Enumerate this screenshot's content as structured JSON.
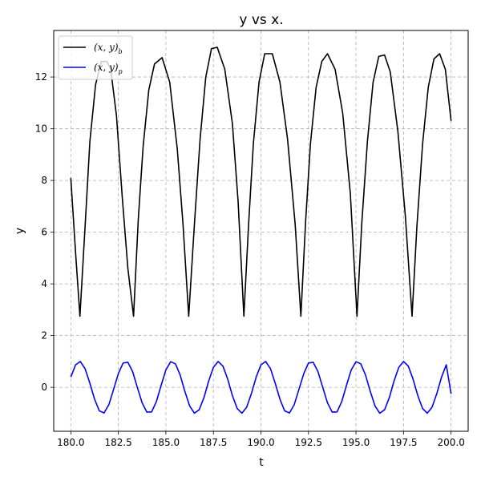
{
  "chart_data": {
    "type": "line",
    "title": "y vs x.",
    "xlabel": "t",
    "ylabel": "y",
    "xlim": [
      179.1,
      200.9
    ],
    "ylim": [
      -1.7,
      13.8
    ],
    "xticks": [
      "180.0",
      "182.5",
      "185.0",
      "187.5",
      "190.0",
      "192.5",
      "195.0",
      "197.5",
      "200.0"
    ],
    "xtick_values": [
      180.0,
      182.5,
      185.0,
      187.5,
      190.0,
      192.5,
      195.0,
      197.5,
      200.0
    ],
    "yticks": [
      "0",
      "2",
      "4",
      "6",
      "8",
      "10",
      "12"
    ],
    "ytick_values": [
      0,
      2,
      4,
      6,
      8,
      10,
      12
    ],
    "grid": true,
    "legend_position": "top-left",
    "series": [
      {
        "name": "(x, y)_b",
        "label_main": "(x, y)",
        "label_sub": "b",
        "color": "#000000",
        "x": [
          180.0,
          180.25,
          180.48,
          180.75,
          181.0,
          181.3,
          181.6,
          181.9,
          182.1,
          182.4,
          182.7,
          183.0,
          183.3,
          183.55,
          183.8,
          184.1,
          184.4,
          184.8,
          185.2,
          185.6,
          185.9,
          186.2,
          186.5,
          186.8,
          187.1,
          187.4,
          187.7,
          188.1,
          188.5,
          188.8,
          189.1,
          189.35,
          189.6,
          189.9,
          190.2,
          190.6,
          191.0,
          191.4,
          191.8,
          192.1,
          192.35,
          192.6,
          192.9,
          193.2,
          193.5,
          193.9,
          194.3,
          194.7,
          195.05,
          195.3,
          195.6,
          195.9,
          196.2,
          196.5,
          196.8,
          197.2,
          197.6,
          197.95,
          198.2,
          198.5,
          198.8,
          199.1,
          199.4,
          199.7,
          200.0
        ],
        "y": [
          8.1,
          5.2,
          2.75,
          6.2,
          9.5,
          11.7,
          12.6,
          12.6,
          12.3,
          10.5,
          7.4,
          4.6,
          2.75,
          6.5,
          9.3,
          11.5,
          12.5,
          12.75,
          11.8,
          9.2,
          6.3,
          2.75,
          6.3,
          9.6,
          12.0,
          13.1,
          13.15,
          12.3,
          10.2,
          7.2,
          2.75,
          6.3,
          9.4,
          11.8,
          12.9,
          12.9,
          11.8,
          9.6,
          6.3,
          2.75,
          6.4,
          9.4,
          11.6,
          12.6,
          12.9,
          12.3,
          10.6,
          7.5,
          2.75,
          6.3,
          9.5,
          11.8,
          12.8,
          12.85,
          12.2,
          9.9,
          6.6,
          2.75,
          6.2,
          9.4,
          11.6,
          12.7,
          12.9,
          12.3,
          10.3
        ]
      },
      {
        "name": "(x, y)_p",
        "label_main": "(x, y)",
        "label_sub": "p",
        "color": "#0000ff",
        "x": [
          180.0,
          180.25,
          180.5,
          180.75,
          181.0,
          181.25,
          181.5,
          181.75,
          182.0,
          182.25,
          182.5,
          182.75,
          183.0,
          183.25,
          183.5,
          183.75,
          184.0,
          184.25,
          184.5,
          184.75,
          185.0,
          185.25,
          185.5,
          185.75,
          186.0,
          186.25,
          186.5,
          186.75,
          187.0,
          187.25,
          187.5,
          187.75,
          188.0,
          188.25,
          188.5,
          188.75,
          189.0,
          189.25,
          189.5,
          189.75,
          190.0,
          190.25,
          190.5,
          190.75,
          191.0,
          191.25,
          191.5,
          191.75,
          192.0,
          192.25,
          192.5,
          192.75,
          193.0,
          193.25,
          193.5,
          193.75,
          194.0,
          194.25,
          194.5,
          194.75,
          195.0,
          195.25,
          195.5,
          195.75,
          196.0,
          196.25,
          196.5,
          196.75,
          197.0,
          197.25,
          197.5,
          197.75,
          198.0,
          198.25,
          198.5,
          198.75,
          199.0,
          199.25,
          199.5,
          199.75,
          200.0
        ],
        "y": [
          0.4,
          0.87,
          1.0,
          0.72,
          0.16,
          -0.46,
          -0.91,
          -0.99,
          -0.67,
          -0.08,
          0.53,
          0.94,
          0.97,
          0.61,
          0.0,
          -0.6,
          -0.96,
          -0.95,
          -0.55,
          0.08,
          0.67,
          0.99,
          0.91,
          0.48,
          -0.16,
          -0.72,
          -1.0,
          -0.87,
          -0.4,
          0.24,
          0.77,
          1.0,
          0.82,
          0.32,
          -0.32,
          -0.82,
          -1.0,
          -0.77,
          -0.24,
          0.4,
          0.87,
          1.0,
          0.72,
          0.16,
          -0.46,
          -0.91,
          -0.99,
          -0.67,
          -0.08,
          0.53,
          0.94,
          0.97,
          0.61,
          0.0,
          -0.6,
          -0.96,
          -0.95,
          -0.55,
          0.08,
          0.67,
          0.99,
          0.91,
          0.48,
          -0.16,
          -0.72,
          -1.0,
          -0.87,
          -0.4,
          0.24,
          0.77,
          1.0,
          0.82,
          0.32,
          -0.32,
          -0.82,
          -1.0,
          -0.77,
          -0.24,
          0.4,
          0.87,
          -0.25
        ]
      }
    ]
  }
}
